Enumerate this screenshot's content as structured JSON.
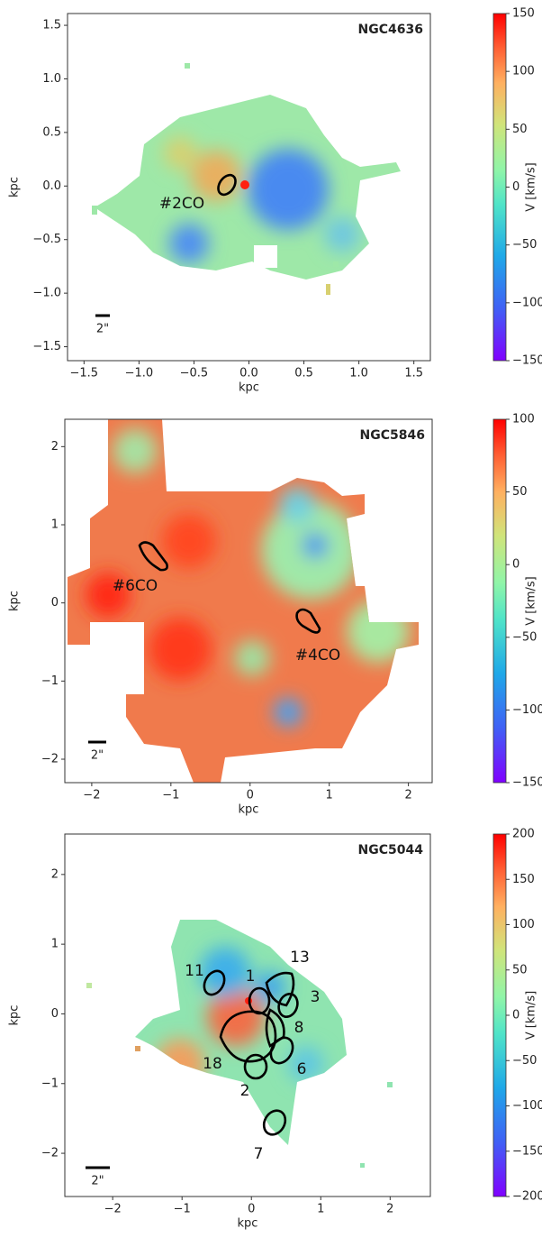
{
  "chart_data": [
    {
      "type": "map",
      "title": "NGC4636",
      "xlabel": "kpc",
      "ylabel": "kpc",
      "xlim": [
        -1.65,
        1.65
      ],
      "ylim": [
        -1.63,
        1.61
      ],
      "xticks": [
        {
          "value": -1.5,
          "label": "−1.5"
        },
        {
          "value": -1,
          "label": "−1.0"
        },
        {
          "value": -0.5,
          "label": "−0.5"
        },
        {
          "value": 0,
          "label": "0.0"
        },
        0.5,
        {
          "value": 1,
          "label": "1.0"
        },
        1.5
      ],
      "yticks": [
        {
          "value": -1.5,
          "label": "−1.5"
        },
        {
          "value": -1,
          "label": "−1.0"
        },
        {
          "value": -0.5,
          "label": "−0.5"
        },
        {
          "value": 0,
          "label": "0.0"
        },
        0.5,
        {
          "value": 1,
          "label": "1.0"
        },
        1.5
      ],
      "colorbar": {
        "label": "V [km/s]",
        "lim": [
          -150,
          150
        ],
        "ticks": [
          150,
          100,
          50,
          0,
          {
            "value": -50,
            "label": "−50"
          },
          {
            "value": -100,
            "label": "−100"
          },
          {
            "value": -150,
            "label": "−150"
          }
        ]
      },
      "scale_bar_label": "2\"",
      "annotations": [
        "#2CO"
      ]
    },
    {
      "type": "map",
      "title": "NGC5846",
      "xlabel": "kpc",
      "ylabel": "kpc",
      "xlim": [
        -2.34,
        2.3
      ],
      "ylim": [
        -2.3,
        2.35
      ],
      "xticks": [
        {
          "value": -2,
          "label": "−2"
        },
        {
          "value": -1,
          "label": "−1"
        },
        0,
        1,
        2
      ],
      "yticks": [
        {
          "value": -2,
          "label": "−2"
        },
        {
          "value": -1,
          "label": "−1"
        },
        0,
        1,
        2
      ],
      "colorbar": {
        "label": "V [km/s]",
        "lim": [
          -150,
          100
        ],
        "ticks": [
          100,
          50,
          0,
          {
            "value": -50,
            "label": "−50"
          },
          {
            "value": -100,
            "label": "−100"
          },
          {
            "value": -150,
            "label": "−150"
          }
        ]
      },
      "scale_bar_label": "2\"",
      "annotations": [
        "#6CO",
        "#4CO"
      ]
    },
    {
      "type": "map",
      "title": "NGC5044",
      "xlabel": "kpc",
      "ylabel": "kpc",
      "xlim": [
        -2.69,
        2.58
      ],
      "ylim": [
        -2.62,
        2.58
      ],
      "xticks": [
        {
          "value": -2,
          "label": "−2"
        },
        {
          "value": -1,
          "label": "−1"
        },
        0,
        1,
        2
      ],
      "yticks": [
        {
          "value": -2,
          "label": "−2"
        },
        {
          "value": -1,
          "label": "−1"
        },
        0,
        1,
        2
      ],
      "colorbar": {
        "label": "V [km/s]",
        "lim": [
          -200,
          200
        ],
        "ticks": [
          200,
          150,
          100,
          50,
          0,
          {
            "value": -50,
            "label": "−50"
          },
          {
            "value": -100,
            "label": "−100"
          },
          {
            "value": -150,
            "label": "−150"
          },
          {
            "value": -200,
            "label": "−200"
          }
        ]
      },
      "scale_bar_label": "2\"",
      "annotations": [
        "13",
        "11",
        "1",
        "3",
        "8",
        "18",
        "6",
        "2",
        "7"
      ]
    }
  ]
}
